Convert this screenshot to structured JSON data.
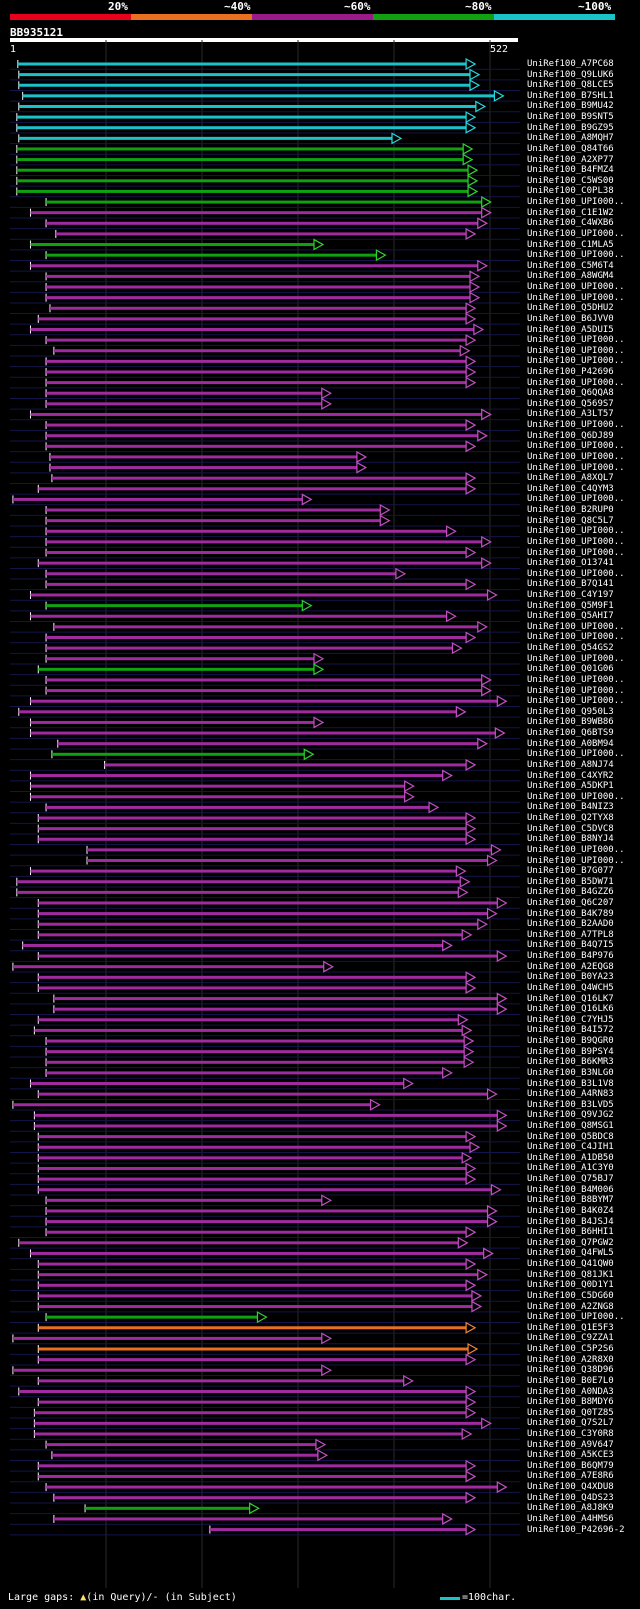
{
  "query": "BB935121",
  "ruler": {
    "start": "1",
    "end": "522",
    "length": 522
  },
  "identity_legend": [
    {
      "label": "20%",
      "color": "#e8001c"
    },
    {
      "label": "~40%",
      "color": "#e87020"
    },
    {
      "label": "~60%",
      "color": "#9a1a8a"
    },
    {
      "label": "~80%",
      "color": "#10a010"
    },
    {
      "label": "~100%",
      "color": "#19c3c9"
    }
  ],
  "footer": {
    "gaps": "Large gaps:",
    "in_query": "(in Query)/",
    "in_subject": "- (in Subject)",
    "scale": "=100char."
  },
  "chart_data": {
    "type": "alignment-overview",
    "x_axis": {
      "min": 1,
      "max": 522
    },
    "hits": [
      [
        "UniRef100_A7PC68",
        9,
        478,
        "c"
      ],
      [
        "UniRef100_Q9LUK6",
        10,
        482,
        "c"
      ],
      [
        "UniRef100_Q8LCE5",
        10,
        482,
        "c"
      ],
      [
        "UniRef100_B7SHL1",
        14,
        507,
        "c"
      ],
      [
        "UniRef100_B9MU42",
        10,
        488,
        "c"
      ],
      [
        "UniRef100_B9SNT5",
        8,
        478,
        "c"
      ],
      [
        "UniRef100_B9GZ95",
        8,
        478,
        "c"
      ],
      [
        "UniRef100_A8MQH7",
        10,
        402,
        "c"
      ],
      [
        "UniRef100_Q84T66",
        8,
        475,
        "g"
      ],
      [
        "UniRef100_A2XP77",
        8,
        475,
        "g"
      ],
      [
        "UniRef100_B4FMZ4",
        8,
        480,
        "g"
      ],
      [
        "UniRef100_C5WS00",
        8,
        480,
        "g"
      ],
      [
        "UniRef100_C0PL38",
        8,
        480,
        "g"
      ],
      [
        "UniRef100_UPI000..",
        38,
        494,
        "g"
      ],
      [
        "UniRef100_C1E1W2",
        22,
        494,
        "m"
      ],
      [
        "UniRef100_C4WXB6",
        38,
        490,
        "m"
      ],
      [
        "UniRef100_UPI000..",
        48,
        478,
        "m"
      ],
      [
        "UniRef100_C1MLA5",
        22,
        322,
        "g"
      ],
      [
        "UniRef100_UPI000..",
        38,
        386,
        "g"
      ],
      [
        "UniRef100_C5M6T4",
        22,
        490,
        "m"
      ],
      [
        "UniRef100_A8WGM4",
        38,
        482,
        "m"
      ],
      [
        "UniRef100_UPI000..",
        38,
        482,
        "m"
      ],
      [
        "UniRef100_UPI000..",
        38,
        482,
        "m"
      ],
      [
        "UniRef100_Q5DHU2",
        42,
        478,
        "m"
      ],
      [
        "UniRef100_B6JVV0",
        30,
        478,
        "m"
      ],
      [
        "UniRef100_A5DUI5",
        22,
        486,
        "m"
      ],
      [
        "UniRef100_UPI000..",
        38,
        478,
        "m"
      ],
      [
        "UniRef100_UPI000..",
        46,
        472,
        "m"
      ],
      [
        "UniRef100_UPI000..",
        38,
        478,
        "m"
      ],
      [
        "UniRef100_P42696",
        38,
        478,
        "m"
      ],
      [
        "UniRef100_UPI000..",
        38,
        478,
        "m"
      ],
      [
        "UniRef100_Q6QQA8",
        38,
        330,
        "m"
      ],
      [
        "UniRef100_Q569S7",
        38,
        330,
        "m"
      ],
      [
        "UniRef100_A3LT57",
        22,
        494,
        "m"
      ],
      [
        "UniRef100_UPI000..",
        38,
        478,
        "m"
      ],
      [
        "UniRef100_Q6DJ89",
        38,
        490,
        "m"
      ],
      [
        "UniRef100_UPI000..",
        38,
        478,
        "m"
      ],
      [
        "UniRef100_UPI000..",
        42,
        366,
        "m"
      ],
      [
        "UniRef100_UPI000..",
        42,
        366,
        "m"
      ],
      [
        "UniRef100_A8XQL7",
        44,
        478,
        "m"
      ],
      [
        "UniRef100_C4QYM3",
        30,
        478,
        "m"
      ],
      [
        "UniRef100_UPI000..",
        4,
        310,
        "m"
      ],
      [
        "UniRef100_B2RUP0",
        38,
        390,
        "m"
      ],
      [
        "UniRef100_Q8C5L7",
        38,
        390,
        "m"
      ],
      [
        "UniRef100_UPI000..",
        38,
        458,
        "m"
      ],
      [
        "UniRef100_UPI000..",
        38,
        494,
        "m"
      ],
      [
        "UniRef100_UPI000..",
        38,
        478,
        "m"
      ],
      [
        "UniRef100_O13741",
        30,
        494,
        "m"
      ],
      [
        "UniRef100_UPI000..",
        38,
        406,
        "m"
      ],
      [
        "UniRef100_B7Q141",
        38,
        478,
        "m"
      ],
      [
        "UniRef100_C4Y197",
        22,
        500,
        "m"
      ],
      [
        "UniRef100_Q5M9F1",
        38,
        310,
        "g"
      ],
      [
        "UniRef100_Q5AHI7",
        22,
        458,
        "m"
      ],
      [
        "UniRef100_UPI000..",
        46,
        490,
        "m"
      ],
      [
        "UniRef100_UPI000..",
        38,
        478,
        "m"
      ],
      [
        "UniRef100_Q54GS2",
        38,
        464,
        "m"
      ],
      [
        "UniRef100_UPI000..",
        38,
        322,
        "m"
      ],
      [
        "UniRef100_Q01G06",
        30,
        322,
        "g"
      ],
      [
        "UniRef100_UPI000..",
        38,
        494,
        "m"
      ],
      [
        "UniRef100_UPI000..",
        38,
        494,
        "m"
      ],
      [
        "UniRef100_UPI000..",
        22,
        510,
        "m"
      ],
      [
        "UniRef100_Q950L3",
        10,
        468,
        "m"
      ],
      [
        "UniRef100_B9WB86",
        22,
        322,
        "m"
      ],
      [
        "UniRef100_Q6BTS9",
        22,
        508,
        "m"
      ],
      [
        "UniRef100_A0BM94",
        50,
        490,
        "m"
      ],
      [
        "UniRef100_UPI000..",
        44,
        312,
        "g"
      ],
      [
        "UniRef100_A8NJ74",
        98,
        478,
        "m"
      ],
      [
        "UniRef100_C4XYR2",
        22,
        454,
        "m"
      ],
      [
        "UniRef100_A5DKP1",
        22,
        415,
        "m"
      ],
      [
        "UniRef100_UPI000..",
        22,
        415,
        "m"
      ],
      [
        "UniRef100_B4NIZ3",
        38,
        440,
        "m"
      ],
      [
        "UniRef100_Q2TYX8",
        30,
        478,
        "m"
      ],
      [
        "UniRef100_C5DVC8",
        30,
        478,
        "m"
      ],
      [
        "UniRef100_B8NYJ4",
        30,
        478,
        "m"
      ],
      [
        "UniRef100_UPI000..",
        80,
        504,
        "m"
      ],
      [
        "UniRef100_UPI000..",
        80,
        500,
        "m"
      ],
      [
        "UniRef100_B7G077",
        22,
        468,
        "m"
      ],
      [
        "UniRef100_B5DW71",
        8,
        472,
        "m"
      ],
      [
        "UniRef100_B4GZZ6",
        8,
        470,
        "m"
      ],
      [
        "UniRef100_Q6C207",
        30,
        510,
        "m"
      ],
      [
        "UniRef100_B4K789",
        30,
        500,
        "m"
      ],
      [
        "UniRef100_B2AAD0",
        30,
        490,
        "m"
      ],
      [
        "UniRef100_A7TPL8",
        30,
        474,
        "m"
      ],
      [
        "UniRef100_B4Q7I5",
        14,
        454,
        "m"
      ],
      [
        "UniRef100_B4P976",
        30,
        510,
        "m"
      ],
      [
        "UniRef100_A2EQG8",
        4,
        332,
        "m"
      ],
      [
        "UniRef100_B0YA23",
        30,
        478,
        "m"
      ],
      [
        "UniRef100_Q4WCH5",
        30,
        478,
        "m"
      ],
      [
        "UniRef100_Q16LK7",
        46,
        510,
        "m"
      ],
      [
        "UniRef100_Q16LK6",
        46,
        510,
        "m"
      ],
      [
        "UniRef100_C7YHJ5",
        30,
        470,
        "m"
      ],
      [
        "UniRef100_B4I572",
        26,
        474,
        "m"
      ],
      [
        "UniRef100_B9QGR0",
        38,
        476,
        "m"
      ],
      [
        "UniRef100_B9PSY4",
        38,
        476,
        "m"
      ],
      [
        "UniRef100_B6KMR3",
        38,
        476,
        "m"
      ],
      [
        "UniRef100_B3NLG0",
        38,
        454,
        "m"
      ],
      [
        "UniRef100_B3L1V8",
        22,
        414,
        "m"
      ],
      [
        "UniRef100_A4RN83",
        30,
        500,
        "m"
      ],
      [
        "UniRef100_B3LVD5",
        4,
        380,
        "m"
      ],
      [
        "UniRef100_Q9VJG2",
        26,
        510,
        "m"
      ],
      [
        "UniRef100_Q8MSG1",
        26,
        510,
        "m"
      ],
      [
        "UniRef100_Q5BDC8",
        30,
        478,
        "m"
      ],
      [
        "UniRef100_C4JIH1",
        30,
        482,
        "m"
      ],
      [
        "UniRef100_A1DB50",
        30,
        474,
        "m"
      ],
      [
        "UniRef100_A1C3Y0",
        30,
        478,
        "m"
      ],
      [
        "UniRef100_Q75BJ7",
        30,
        478,
        "m"
      ],
      [
        "UniRef100_B4M006",
        30,
        504,
        "m"
      ],
      [
        "UniRef100_B8BYM7",
        38,
        330,
        "m"
      ],
      [
        "UniRef100_B4K0Z4",
        38,
        500,
        "m"
      ],
      [
        "UniRef100_B4JSJ4",
        38,
        500,
        "m"
      ],
      [
        "UniRef100_B6HHI1",
        38,
        478,
        "m"
      ],
      [
        "UniRef100_Q7PGW2",
        10,
        470,
        "m"
      ],
      [
        "UniRef100_Q4FWL5",
        22,
        496,
        "m"
      ],
      [
        "UniRef100_Q41QW0",
        30,
        478,
        "m"
      ],
      [
        "UniRef100_Q81JK1",
        30,
        490,
        "m"
      ],
      [
        "UniRef100_Q0D1Y1",
        30,
        478,
        "m"
      ],
      [
        "UniRef100_C5DG60",
        30,
        484,
        "m"
      ],
      [
        "UniRef100_A2ZNG8",
        30,
        484,
        "m"
      ],
      [
        "UniRef100_UPI000..",
        38,
        264,
        "g"
      ],
      [
        "UniRef100_Q1E5F3",
        30,
        478,
        "o"
      ],
      [
        "UniRef100_C9ZZA1",
        4,
        330,
        "m"
      ],
      [
        "UniRef100_C5P2S6",
        30,
        480,
        "o"
      ],
      [
        "UniRef100_A2R8X0",
        30,
        478,
        "m"
      ],
      [
        "UniRef100_Q38D96",
        4,
        330,
        "m"
      ],
      [
        "UniRef100_B0E7L0",
        30,
        414,
        "m"
      ],
      [
        "UniRef100_A0NDA3",
        10,
        478,
        "m"
      ],
      [
        "UniRef100_B8MDY6",
        30,
        478,
        "m"
      ],
      [
        "UniRef100_Q0TZ85",
        26,
        478,
        "m"
      ],
      [
        "UniRef100_Q7S2L7",
        26,
        494,
        "m"
      ],
      [
        "UniRef100_C3Y0R8",
        26,
        474,
        "m"
      ],
      [
        "UniRef100_A9V647",
        38,
        324,
        "m"
      ],
      [
        "UniRef100_A5KCE3",
        44,
        326,
        "m"
      ],
      [
        "UniRef100_B6QM79",
        30,
        478,
        "m"
      ],
      [
        "UniRef100_A7E8R6",
        30,
        478,
        "m"
      ],
      [
        "UniRef100_Q4XDU8",
        38,
        510,
        "m"
      ],
      [
        "UniRef100_Q4DS23",
        46,
        478,
        "m"
      ],
      [
        "UniRef100_A8J8K9",
        78,
        256,
        "g"
      ],
      [
        "UniRef100_A4HMS6",
        46,
        454,
        "m"
      ],
      [
        "UniRef100_P42696-2",
        206,
        478,
        "m"
      ]
    ]
  }
}
